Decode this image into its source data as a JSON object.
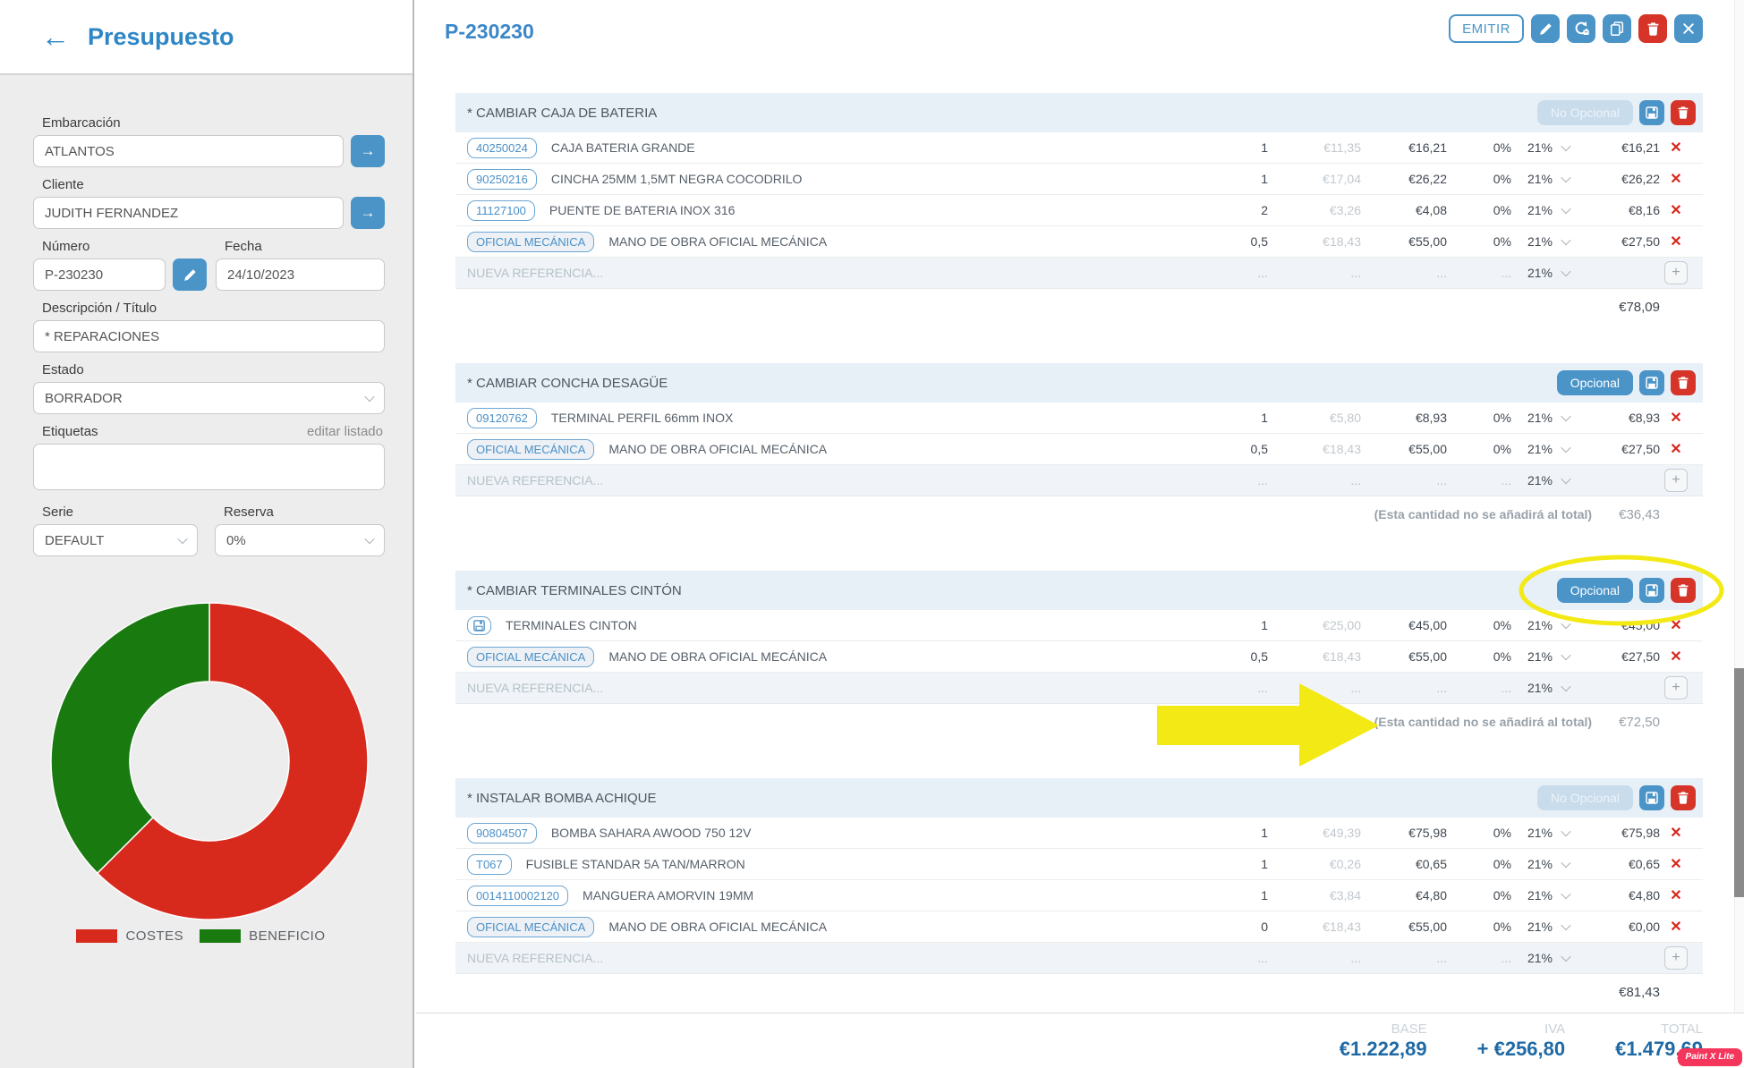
{
  "glyphs": {
    "back": "←",
    "arrow_right": "→",
    "plus": "+",
    "close_x": "✕",
    "dots": "..."
  },
  "colors": {
    "accent": "#4a94c8",
    "danger": "#d63428",
    "row_x": "#d8271c",
    "highlight": "#f3e915",
    "costes": "#d8291d",
    "beneficio": "#187a0f"
  },
  "sidebar": {
    "back_label": "Presupuesto",
    "fields": {
      "embarcacion": {
        "label": "Embarcación",
        "value": "ATLANTOS"
      },
      "cliente": {
        "label": "Cliente",
        "value": "JUDITH FERNANDEZ"
      },
      "numero": {
        "label": "Número",
        "value": "P-230230"
      },
      "fecha": {
        "label": "Fecha",
        "value": "24/10/2023"
      },
      "descripcion": {
        "label": "Descripción / Título",
        "value": "* REPARACIONES"
      },
      "estado": {
        "label": "Estado",
        "value": "BORRADOR"
      },
      "etiquetas": {
        "label": "Etiquetas",
        "action": "editar listado",
        "value": ""
      },
      "serie": {
        "label": "Serie",
        "value": "DEFAULT"
      },
      "reserva": {
        "label": "Reserva",
        "value": "0%"
      }
    }
  },
  "chart_data": {
    "type": "pie",
    "subtype": "donut",
    "legend_position": "bottom",
    "series": [
      {
        "name": "COSTES",
        "value": 62.5,
        "color": "#d8291d"
      },
      {
        "name": "BENEFICIO",
        "value": 37.5,
        "color": "#187a0f"
      }
    ],
    "unit": "percent (estimated from arc angles)"
  },
  "header": {
    "title": "P-230230",
    "emitir_label": "EMITIR",
    "toolbar_icons": [
      "edit-icon",
      "convert-icon",
      "copy-icon",
      "trash-icon",
      "close-icon"
    ]
  },
  "new_row": {
    "placeholder": "NUEVA REFERENCIA...",
    "dots": "...",
    "vat": "21%"
  },
  "optional_note": "(Esta cantidad no se añadirá al total)",
  "sections": [
    {
      "title": "* CAMBIAR CAJA DE BATERIA",
      "optional_label": "No Opcional",
      "optional_active": false,
      "highlighted": false,
      "total": "€78,09",
      "rows": [
        {
          "ref": "40250024",
          "desc": "CAJA BATERIA GRANDE",
          "qty": "1",
          "cost": "€11,35",
          "price": "€16,21",
          "disc": "0%",
          "vat": "21%",
          "total": "€16,21"
        },
        {
          "ref": "90250216",
          "desc": "CINCHA 25MM 1,5MT NEGRA COCODRILO",
          "qty": "1",
          "cost": "€17,04",
          "price": "€26,22",
          "disc": "0%",
          "vat": "21%",
          "total": "€26,22"
        },
        {
          "ref": "11127100",
          "desc": "PUENTE DE BATERIA INOX 316",
          "qty": "2",
          "cost": "€3,26",
          "price": "€4,08",
          "disc": "0%",
          "vat": "21%",
          "total": "€8,16"
        },
        {
          "ref": "OFICIAL MECÁNICA",
          "labor": true,
          "desc": "MANO DE OBRA OFICIAL MECÁNICA",
          "qty": "0,5",
          "cost": "€18,43",
          "price": "€55,00",
          "disc": "0%",
          "vat": "21%",
          "total": "€27,50"
        }
      ]
    },
    {
      "title": "* CAMBIAR CONCHA DESAGÜE",
      "optional_label": "Opcional",
      "optional_active": true,
      "highlighted": false,
      "total": "€36,43",
      "rows": [
        {
          "ref": "09120762",
          "desc": "TERMINAL PERFIL 66mm INOX",
          "qty": "1",
          "cost": "€5,80",
          "price": "€8,93",
          "disc": "0%",
          "vat": "21%",
          "total": "€8,93"
        },
        {
          "ref": "OFICIAL MECÁNICA",
          "labor": true,
          "desc": "MANO DE OBRA OFICIAL MECÁNICA",
          "qty": "0,5",
          "cost": "€18,43",
          "price": "€55,00",
          "disc": "0%",
          "vat": "21%",
          "total": "€27,50"
        }
      ]
    },
    {
      "title": "* CAMBIAR TERMINALES CINTÓN",
      "optional_label": "Opcional",
      "optional_active": true,
      "highlighted": true,
      "total": "€72,50",
      "rows": [
        {
          "ref_icon": "floppy-icon",
          "desc": "TERMINALES CINTON",
          "qty": "1",
          "cost": "€25,00",
          "price": "€45,00",
          "disc": "0%",
          "vat": "21%",
          "total": "€45,00"
        },
        {
          "ref": "OFICIAL MECÁNICA",
          "labor": true,
          "desc": "MANO DE OBRA OFICIAL MECÁNICA",
          "qty": "0,5",
          "cost": "€18,43",
          "price": "€55,00",
          "disc": "0%",
          "vat": "21%",
          "total": "€27,50"
        }
      ]
    },
    {
      "title": "* INSTALAR BOMBA ACHIQUE",
      "optional_label": "No Opcional",
      "optional_active": false,
      "highlighted": false,
      "total": "€81,43",
      "rows": [
        {
          "ref": "90804507",
          "desc": "BOMBA SAHARA AWOOD 750 12V",
          "qty": "1",
          "cost": "€49,39",
          "price": "€75,98",
          "disc": "0%",
          "vat": "21%",
          "total": "€75,98"
        },
        {
          "ref": "T067",
          "desc": "FUSIBLE STANDAR 5A TAN/MARRON",
          "qty": "1",
          "cost": "€0,26",
          "price": "€0,65",
          "disc": "0%",
          "vat": "21%",
          "total": "€0,65"
        },
        {
          "ref": "0014110002120",
          "desc": "MANGUERA AMORVIN 19MM",
          "qty": "1",
          "cost": "€3,84",
          "price": "€4,80",
          "disc": "0%",
          "vat": "21%",
          "total": "€4,80"
        },
        {
          "ref": "OFICIAL MECÁNICA",
          "labor": true,
          "desc": "MANO DE OBRA OFICIAL MECÁNICA",
          "qty": "0",
          "cost": "€18,43",
          "price": "€55,00",
          "disc": "0%",
          "vat": "21%",
          "total": "€0,00"
        }
      ]
    }
  ],
  "footer": {
    "base_label": "BASE",
    "base": "€1.222,89",
    "iva_label": "IVA",
    "iva": "+ €256,80",
    "total_label": "TOTAL",
    "total": "€1.479,69"
  },
  "annotations": {
    "color": "#f3e915",
    "ellipse": "hand-drawn highlight around section-3 optional buttons",
    "arrow": "large arrow pointing to section-3 optional total note"
  },
  "watermark": "Paint X Lite"
}
